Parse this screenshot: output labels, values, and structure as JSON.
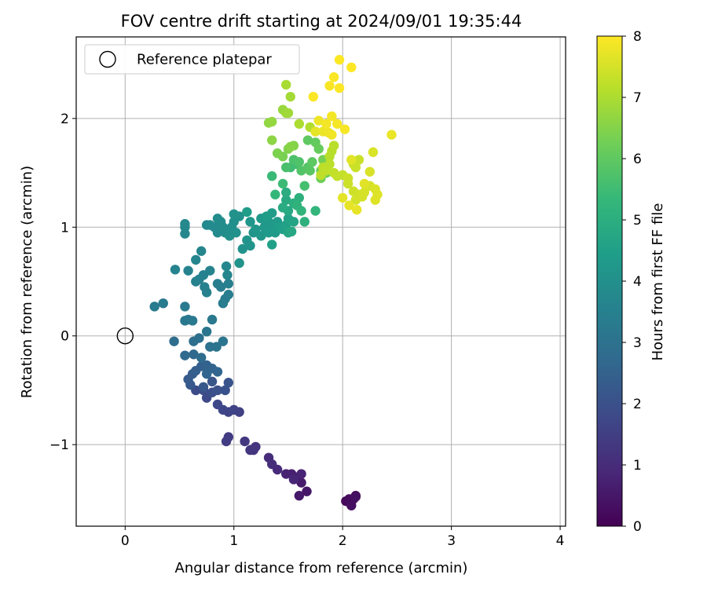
{
  "chart_data": {
    "type": "scatter",
    "title": "FOV centre drift starting at 2024/09/01 19:35:44",
    "xlabel": "Angular distance from reference (arcmin)",
    "ylabel": "Rotation from reference (arcmin)",
    "xlim": [
      -0.45,
      4.05
    ],
    "ylim": [
      -1.75,
      2.75
    ],
    "xticks": [
      "0",
      "1",
      "2",
      "3",
      "4"
    ],
    "yticks": [
      "−1",
      "0",
      "1",
      "2"
    ],
    "grid": true,
    "legend": {
      "label": "Reference platepar",
      "placement": "top-left",
      "marker": "open-circle"
    },
    "reference_point": {
      "x": 0,
      "y": 0
    },
    "colorbar": {
      "label": "Hours from first FF file",
      "min": 0,
      "max": 8,
      "ticks": [
        "0",
        "1",
        "2",
        "3",
        "4",
        "5",
        "6",
        "7",
        "8"
      ],
      "colormap": "viridis",
      "colors": [
        "#440154",
        "#482878",
        "#3e4989",
        "#31688e",
        "#26828e",
        "#1f9e89",
        "#35b779",
        "#6ece58",
        "#b5de2b",
        "#fde725"
      ]
    },
    "points": [
      [
        2.12,
        -1.47,
        0.05
      ],
      [
        2.08,
        -1.52,
        0.1
      ],
      [
        2.03,
        -1.52,
        0.15
      ],
      [
        2.1,
        -1.5,
        0.2
      ],
      [
        2.06,
        -1.5,
        0.25
      ],
      [
        2.08,
        -1.56,
        0.3
      ],
      [
        2.12,
        -1.48,
        0.35
      ],
      [
        1.67,
        -1.43,
        0.5
      ],
      [
        1.6,
        -1.47,
        0.55
      ],
      [
        1.62,
        -1.35,
        0.6
      ],
      [
        1.58,
        -1.3,
        0.65
      ],
      [
        1.53,
        -1.27,
        0.7
      ],
      [
        1.48,
        -1.27,
        0.75
      ],
      [
        1.62,
        -1.27,
        0.8
      ],
      [
        1.55,
        -1.32,
        0.85
      ],
      [
        1.4,
        -1.23,
        0.95
      ],
      [
        1.32,
        -1.12,
        1.0
      ],
      [
        1.35,
        -1.18,
        1.05
      ],
      [
        1.18,
        -1.05,
        1.15
      ],
      [
        1.2,
        -1.02,
        1.2
      ],
      [
        1.15,
        -1.05,
        1.25
      ],
      [
        1.1,
        -0.97,
        1.3
      ],
      [
        0.95,
        -0.93,
        1.4
      ],
      [
        0.93,
        -0.97,
        1.45
      ],
      [
        1.05,
        -0.7,
        1.55
      ],
      [
        1.0,
        -0.68,
        1.6
      ],
      [
        0.95,
        -0.7,
        1.65
      ],
      [
        0.9,
        -0.68,
        1.7
      ],
      [
        0.85,
        -0.63,
        1.75
      ],
      [
        0.75,
        -0.57,
        1.8
      ],
      [
        0.65,
        -0.5,
        1.85
      ],
      [
        0.72,
        -0.5,
        1.9
      ],
      [
        0.8,
        -0.52,
        1.95
      ],
      [
        0.85,
        -0.5,
        2.0
      ],
      [
        0.92,
        -0.5,
        2.05
      ],
      [
        0.95,
        -0.43,
        2.1
      ],
      [
        0.8,
        -0.42,
        2.15
      ],
      [
        0.72,
        -0.47,
        2.2
      ],
      [
        0.6,
        -0.45,
        2.25
      ],
      [
        0.58,
        -0.4,
        2.3
      ],
      [
        0.62,
        -0.35,
        2.35
      ],
      [
        0.65,
        -0.32,
        2.4
      ],
      [
        0.7,
        -0.28,
        2.45
      ],
      [
        0.75,
        -0.27,
        2.5
      ],
      [
        0.8,
        -0.3,
        2.55
      ],
      [
        0.85,
        -0.33,
        2.6
      ],
      [
        0.75,
        -0.35,
        2.65
      ],
      [
        0.63,
        -0.17,
        2.7
      ],
      [
        0.55,
        -0.18,
        2.75
      ],
      [
        0.7,
        -0.2,
        2.8
      ],
      [
        0.45,
        -0.05,
        2.85
      ],
      [
        0.63,
        -0.05,
        2.9
      ],
      [
        0.68,
        -0.02,
        2.95
      ],
      [
        0.78,
        -0.1,
        3.0
      ],
      [
        0.84,
        -0.1,
        3.05
      ],
      [
        0.9,
        -0.05,
        3.1
      ],
      [
        0.75,
        0.04,
        3.15
      ],
      [
        0.55,
        0.14,
        3.2
      ],
      [
        0.58,
        0.15,
        3.22
      ],
      [
        0.62,
        0.14,
        3.24
      ],
      [
        0.8,
        0.15,
        3.26
      ],
      [
        0.55,
        0.27,
        3.28
      ],
      [
        0.27,
        0.27,
        3.3
      ],
      [
        0.35,
        0.3,
        3.32
      ],
      [
        0.92,
        0.34,
        3.35
      ],
      [
        0.9,
        0.3,
        3.38
      ],
      [
        0.95,
        0.38,
        3.4
      ],
      [
        0.88,
        0.45,
        3.42
      ],
      [
        0.95,
        0.48,
        3.44
      ],
      [
        0.85,
        0.48,
        3.46
      ],
      [
        0.75,
        0.4,
        3.48
      ],
      [
        0.73,
        0.45,
        3.5
      ],
      [
        0.65,
        0.5,
        3.52
      ],
      [
        0.68,
        0.52,
        3.54
      ],
      [
        0.72,
        0.56,
        3.56
      ],
      [
        0.78,
        0.6,
        3.58
      ],
      [
        0.58,
        0.6,
        3.6
      ],
      [
        0.46,
        0.61,
        3.62
      ],
      [
        0.65,
        0.7,
        3.64
      ],
      [
        0.7,
        0.78,
        3.66
      ],
      [
        0.94,
        0.56,
        3.68
      ],
      [
        0.93,
        0.64,
        3.7
      ],
      [
        0.55,
        0.94,
        3.72
      ],
      [
        0.55,
        1.03,
        3.74
      ],
      [
        0.55,
        1.0,
        3.76
      ],
      [
        0.75,
        1.02,
        3.78
      ],
      [
        0.78,
        1.02,
        3.8
      ],
      [
        0.82,
        1.0,
        3.82
      ],
      [
        0.85,
        0.95,
        3.84
      ],
      [
        0.88,
        1.05,
        3.86
      ],
      [
        0.85,
        1.08,
        3.88
      ],
      [
        0.9,
        1.0,
        3.9
      ],
      [
        0.92,
        0.95,
        3.92
      ],
      [
        0.95,
        0.98,
        3.94
      ],
      [
        0.98,
        1.0,
        3.96
      ],
      [
        1.0,
        1.05,
        3.98
      ],
      [
        0.96,
        0.92,
        4.0
      ],
      [
        1.02,
        0.95,
        4.02
      ],
      [
        1.05,
        1.1,
        4.04
      ],
      [
        1.0,
        1.12,
        4.06
      ],
      [
        1.05,
        0.67,
        4.08
      ],
      [
        1.08,
        0.8,
        4.1
      ],
      [
        1.12,
        0.88,
        4.12
      ],
      [
        1.15,
        0.83,
        4.14
      ],
      [
        1.18,
        0.95,
        4.16
      ],
      [
        1.2,
        0.98,
        4.18
      ],
      [
        1.15,
        1.05,
        4.2
      ],
      [
        1.25,
        0.92,
        4.22
      ],
      [
        1.28,
        1.0,
        4.24
      ],
      [
        1.25,
        1.08,
        4.26
      ],
      [
        1.32,
        1.05,
        4.28
      ],
      [
        1.35,
        1.02,
        4.3
      ],
      [
        1.32,
        0.95,
        4.32
      ],
      [
        1.38,
        0.95,
        4.34
      ],
      [
        1.4,
        1.05,
        4.36
      ],
      [
        1.35,
        1.13,
        4.38
      ],
      [
        1.12,
        1.14,
        4.4
      ],
      [
        1.3,
        1.1,
        4.42
      ],
      [
        1.42,
        1.0,
        4.45
      ],
      [
        1.45,
        0.98,
        4.5
      ],
      [
        1.35,
        0.84,
        4.52
      ],
      [
        1.48,
        1.02,
        4.55
      ],
      [
        1.5,
        1.08,
        4.6
      ],
      [
        1.55,
        1.05,
        4.65
      ],
      [
        1.5,
        0.95,
        4.7
      ],
      [
        1.53,
        0.96,
        4.75
      ],
      [
        1.5,
        1.15,
        4.8
      ],
      [
        1.48,
        1.25,
        4.85
      ],
      [
        1.45,
        1.18,
        4.9
      ],
      [
        1.48,
        1.32,
        4.95
      ],
      [
        1.55,
        1.22,
        5.0
      ],
      [
        1.6,
        1.27,
        5.05
      ],
      [
        1.65,
        1.05,
        5.1
      ],
      [
        1.58,
        1.2,
        5.15
      ],
      [
        1.62,
        1.15,
        5.2
      ],
      [
        1.75,
        1.15,
        5.25
      ],
      [
        1.38,
        1.3,
        5.3
      ],
      [
        1.35,
        1.47,
        5.4
      ],
      [
        1.45,
        1.4,
        5.45
      ],
      [
        1.52,
        1.55,
        5.5
      ],
      [
        1.58,
        1.58,
        5.55
      ],
      [
        1.65,
        1.38,
        5.6
      ],
      [
        1.48,
        1.55,
        5.65
      ],
      [
        1.55,
        1.62,
        5.7
      ],
      [
        1.6,
        1.6,
        5.75
      ],
      [
        1.62,
        1.52,
        5.8
      ],
      [
        1.68,
        1.55,
        5.85
      ],
      [
        1.7,
        1.52,
        5.9
      ],
      [
        1.72,
        1.6,
        5.95
      ],
      [
        1.68,
        1.8,
        6.0
      ],
      [
        1.75,
        1.78,
        6.05
      ],
      [
        1.78,
        1.72,
        6.1
      ],
      [
        1.8,
        1.52,
        6.15
      ],
      [
        1.85,
        1.5,
        6.2
      ],
      [
        1.8,
        1.45,
        6.25
      ],
      [
        1.82,
        1.62,
        6.3
      ],
      [
        1.45,
        1.65,
        6.35
      ],
      [
        1.4,
        1.68,
        6.4
      ],
      [
        1.5,
        1.72,
        6.45
      ],
      [
        1.55,
        1.75,
        6.5
      ],
      [
        1.52,
        1.74,
        6.55
      ],
      [
        1.35,
        1.8,
        6.6
      ],
      [
        1.32,
        1.96,
        6.65
      ],
      [
        1.35,
        1.97,
        6.7
      ],
      [
        1.45,
        2.08,
        6.75
      ],
      [
        1.48,
        2.05,
        6.8
      ],
      [
        1.5,
        2.05,
        6.85
      ],
      [
        1.52,
        2.2,
        6.9
      ],
      [
        1.48,
        2.31,
        6.95
      ],
      [
        1.6,
        1.95,
        7.0
      ],
      [
        1.7,
        1.92,
        7.05
      ],
      [
        1.75,
        1.88,
        7.1
      ],
      [
        1.88,
        1.65,
        7.12
      ],
      [
        1.9,
        1.7,
        7.14
      ],
      [
        1.92,
        1.75,
        7.16
      ],
      [
        1.88,
        1.58,
        7.18
      ],
      [
        1.82,
        1.55,
        7.2
      ],
      [
        1.8,
        1.48,
        7.22
      ],
      [
        1.85,
        1.52,
        7.24
      ],
      [
        1.92,
        1.5,
        7.26
      ],
      [
        1.95,
        1.47,
        7.28
      ],
      [
        2.0,
        1.48,
        7.3
      ],
      [
        2.1,
        1.58,
        7.32
      ],
      [
        2.15,
        1.62,
        7.34
      ],
      [
        2.12,
        1.55,
        7.36
      ],
      [
        2.05,
        1.45,
        7.38
      ],
      [
        2.05,
        1.4,
        7.4
      ],
      [
        2.1,
        1.33,
        7.42
      ],
      [
        2.15,
        1.3,
        7.44
      ],
      [
        2.12,
        1.25,
        7.46
      ],
      [
        2.18,
        1.28,
        7.48
      ],
      [
        2.2,
        1.32,
        7.5
      ],
      [
        2.25,
        1.38,
        7.52
      ],
      [
        2.25,
        1.51,
        7.54
      ],
      [
        2.28,
        1.69,
        7.56
      ],
      [
        2.3,
        1.35,
        7.58
      ],
      [
        2.32,
        1.3,
        7.6
      ],
      [
        2.3,
        1.25,
        7.62
      ],
      [
        2.2,
        1.4,
        7.64
      ],
      [
        2.08,
        1.62,
        7.66
      ],
      [
        2.0,
        1.27,
        7.68
      ],
      [
        1.75,
        1.88,
        7.7
      ],
      [
        2.06,
        1.2,
        7.72
      ],
      [
        2.13,
        1.16,
        7.74
      ],
      [
        2.45,
        1.85,
        7.76
      ],
      [
        1.82,
        1.88,
        7.78
      ],
      [
        1.87,
        1.87,
        7.8
      ],
      [
        1.78,
        1.98,
        7.82
      ],
      [
        1.9,
        1.85,
        7.84
      ],
      [
        1.85,
        1.95,
        7.86
      ],
      [
        1.9,
        2.02,
        7.88
      ],
      [
        1.95,
        1.95,
        7.9
      ],
      [
        2.02,
        1.9,
        7.92
      ],
      [
        1.88,
        2.3,
        7.94
      ],
      [
        1.92,
        2.38,
        7.96
      ],
      [
        1.97,
        2.28,
        7.97
      ],
      [
        1.73,
        2.2,
        7.98
      ],
      [
        1.97,
        2.54,
        7.99
      ],
      [
        2.08,
        2.47,
        8.0
      ]
    ]
  }
}
